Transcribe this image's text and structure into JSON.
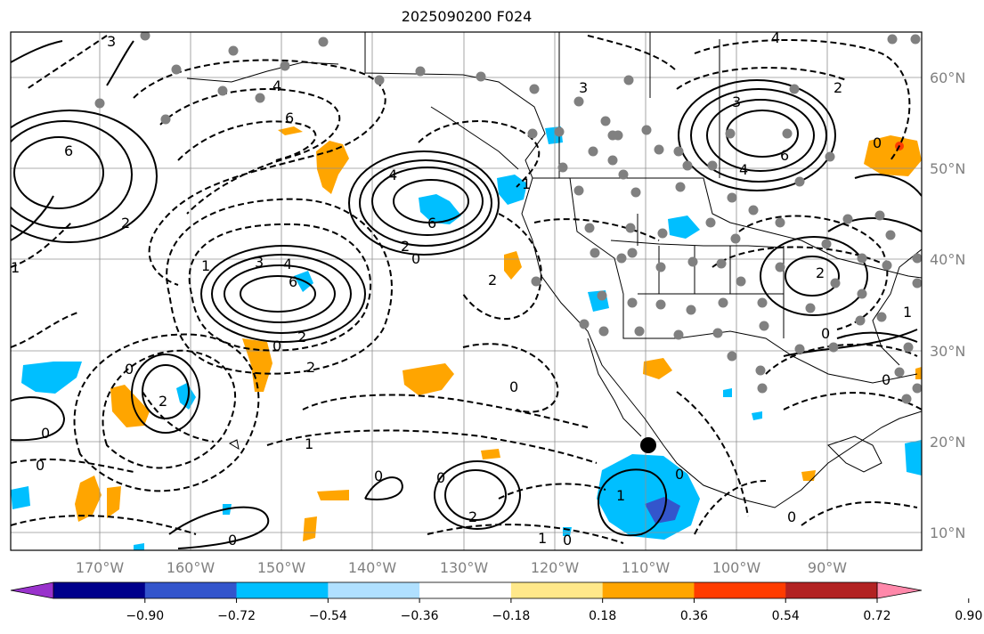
{
  "title": "2025090200 F024",
  "lon_labels": [
    "170°W",
    "160°W",
    "150°W",
    "140°W",
    "130°W",
    "120°W",
    "110°W",
    "100°W",
    "90°W"
  ],
  "lat_labels": [
    "60°N",
    "50°N",
    "40°N",
    "30°N",
    "20°N",
    "10°N"
  ],
  "colorbar": {
    "colors": [
      "#9932cc",
      "#00008b",
      "#3355cc",
      "#00bfff",
      "#b0e0ff",
      "#ffffff",
      "#ffe88a",
      "#ffa500",
      "#ff3c00",
      "#b22222",
      "#ff88aa"
    ],
    "tick_labels": [
      "−0.90",
      "−0.72",
      "−0.54",
      "−0.36",
      "−0.18",
      "0.18",
      "0.36",
      "0.54",
      "0.72",
      "0.90"
    ]
  },
  "contour_labels": {
    "npac_low_1": "6",
    "npac_low_2": "2",
    "alaska_low": "6",
    "alaska_6": "4",
    "gulf_low": "6",
    "gulf_4": "4",
    "gulf_2": "2",
    "gulf_0": "0",
    "central_high": "6",
    "central_4": "4",
    "central_3": "3",
    "central_2": "2",
    "central_0": "0",
    "hawaii_low": "2",
    "hawaii_0": "0",
    "canada_low_6": "6",
    "canada_4": "4",
    "canada_3": "3",
    "canada_2": "2",
    "east_low": "2",
    "east_1": "1",
    "east_0": "0",
    "ne_0": "0",
    "mex_low": "1",
    "mex_0": "0",
    "south_low": "2",
    "south_0": "0",
    "south_0b": "0",
    "west_0": "0",
    "west_1": "1",
    "west_0b": "0",
    "west_2": "2",
    "ak_3": "3",
    "ak_4": "4",
    "ak_1": "1",
    "cal_2": "2",
    "cal_3": "3",
    "gulf_1": "1",
    "mid_1": "1",
    "mid_0": "0",
    "se_0": "0",
    "far_s_1": "1",
    "far_s_0": "0",
    "trop_0": "0",
    "gulfmex_0": "0"
  }
}
